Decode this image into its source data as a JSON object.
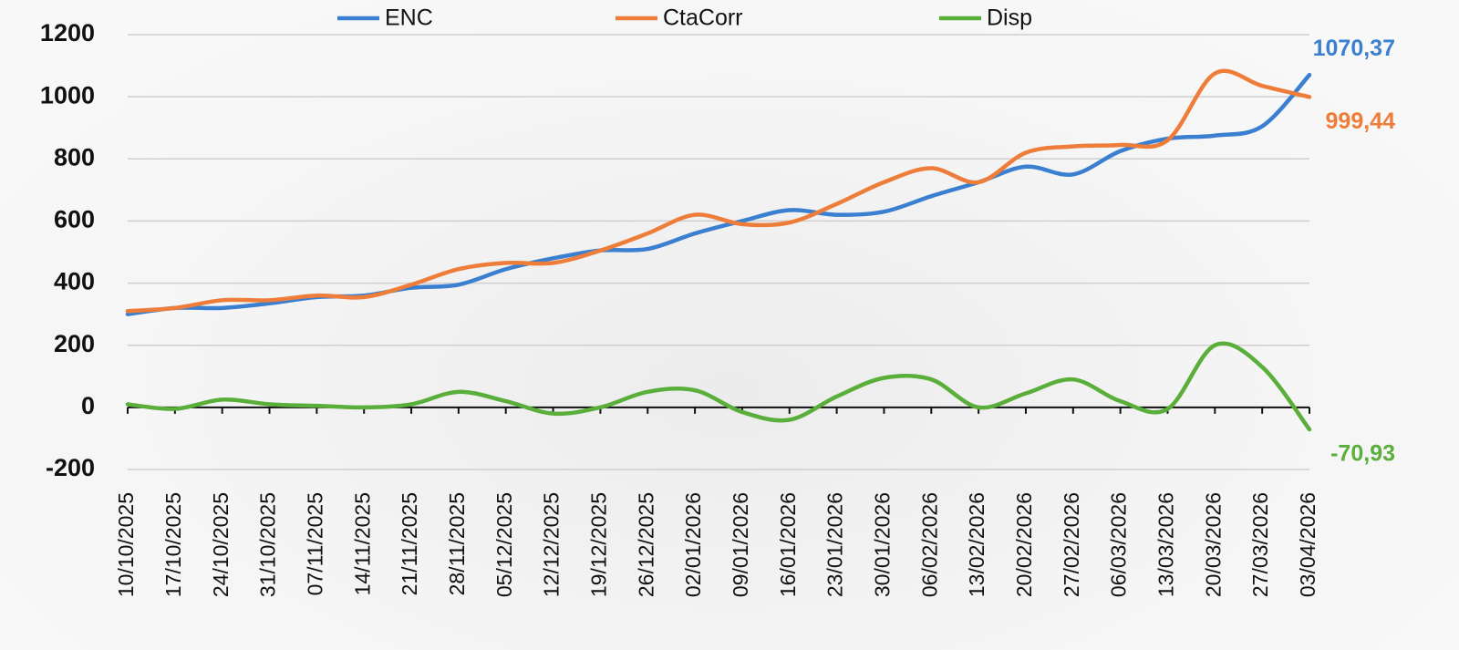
{
  "chart_data": {
    "type": "line",
    "categories": [
      "10/10/2025",
      "17/10/2025",
      "24/10/2025",
      "31/10/2025",
      "07/11/2025",
      "14/11/2025",
      "21/11/2025",
      "28/11/2025",
      "05/12/2025",
      "12/12/2025",
      "19/12/2025",
      "26/12/2025",
      "02/01/2026",
      "09/01/2026",
      "16/01/2026",
      "23/01/2026",
      "30/01/2026",
      "06/02/2026",
      "13/02/2026",
      "20/02/2026",
      "27/02/2026",
      "06/03/2026",
      "13/03/2026",
      "20/03/2026",
      "27/03/2026",
      "03/04/2026"
    ],
    "series": [
      {
        "name": "ENC",
        "color": "#3a7fd0",
        "values": [
          300,
          320,
          320,
          335,
          355,
          360,
          385,
          395,
          445,
          480,
          505,
          510,
          560,
          600,
          635,
          620,
          630,
          680,
          725,
          775,
          750,
          825,
          865,
          875,
          905,
          1070.37
        ],
        "value_labels": [
          null,
          null,
          null,
          null,
          null,
          null,
          null,
          null,
          null,
          null,
          null,
          null,
          null,
          null,
          null,
          null,
          null,
          null,
          null,
          null,
          null,
          null,
          null,
          null,
          null,
          "1070,37"
        ]
      },
      {
        "name": "CtaCorr",
        "color": "#ee7d3a",
        "values": [
          310,
          320,
          345,
          345,
          360,
          355,
          395,
          445,
          465,
          465,
          505,
          560,
          620,
          590,
          595,
          655,
          725,
          770,
          725,
          820,
          840,
          845,
          860,
          1075,
          1035,
          999.44
        ],
        "value_labels": [
          null,
          null,
          null,
          null,
          null,
          null,
          null,
          null,
          null,
          null,
          null,
          null,
          null,
          null,
          null,
          null,
          null,
          null,
          null,
          null,
          null,
          null,
          null,
          null,
          null,
          "999,44"
        ]
      },
      {
        "name": "Disp",
        "color": "#5aae3a",
        "values": [
          10,
          -5,
          25,
          10,
          5,
          0,
          10,
          50,
          20,
          -20,
          0,
          50,
          55,
          -15,
          -40,
          35,
          95,
          90,
          0,
          45,
          90,
          20,
          -5,
          200,
          130,
          -70.93
        ],
        "value_labels": [
          null,
          null,
          null,
          null,
          null,
          null,
          null,
          null,
          null,
          null,
          null,
          null,
          null,
          null,
          null,
          null,
          null,
          null,
          null,
          null,
          null,
          null,
          null,
          null,
          null,
          "-70,93"
        ]
      }
    ],
    "ylim": [
      -200,
      1200
    ],
    "yticks": [
      -200,
      0,
      200,
      400,
      600,
      800,
      1000,
      1200
    ],
    "grid": true,
    "legend": "top"
  }
}
